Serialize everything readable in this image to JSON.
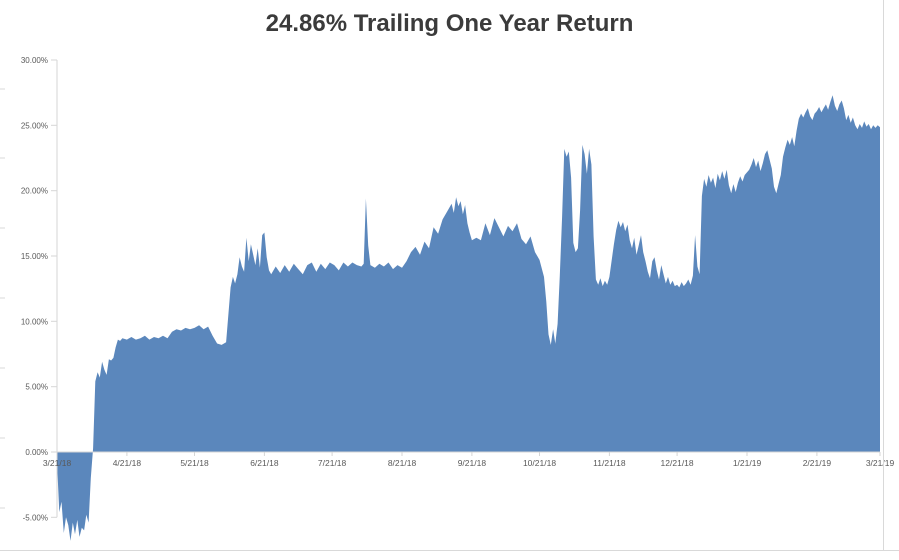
{
  "chart_data": {
    "type": "area",
    "title": "24.86% Trailing One Year Return",
    "final_value": "24.86%",
    "ylabel": "",
    "xlabel": "",
    "ylim": [
      -5,
      30
    ],
    "xlim_days": [
      0,
      365
    ],
    "grid": false,
    "legend": "none",
    "colors": {
      "area": "#5B87BC",
      "axis": "#D6D6D6",
      "border": "#D9D9D9",
      "label": "#595959",
      "title": "#3B3B3B"
    },
    "y_ticks": [
      {
        "value": 30,
        "label": "30.00%"
      },
      {
        "value": 25,
        "label": "25.00%"
      },
      {
        "value": 20,
        "label": "20.00%"
      },
      {
        "value": 15,
        "label": "15.00%"
      },
      {
        "value": 10,
        "label": "10.00%"
      },
      {
        "value": 5,
        "label": "5.00%"
      },
      {
        "value": 0,
        "label": "0.00%"
      },
      {
        "value": -5,
        "label": "-5.00%"
      }
    ],
    "x_ticks": [
      {
        "day": 0,
        "label": "3/21/18"
      },
      {
        "day": 31,
        "label": "4/21/18"
      },
      {
        "day": 61,
        "label": "5/21/18"
      },
      {
        "day": 92,
        "label": "6/21/18"
      },
      {
        "day": 122,
        "label": "7/21/18"
      },
      {
        "day": 153,
        "label": "8/21/18"
      },
      {
        "day": 184,
        "label": "9/21/18"
      },
      {
        "day": 214,
        "label": "10/21/18"
      },
      {
        "day": 245,
        "label": "11/21/18"
      },
      {
        "day": 275,
        "label": "12/21/18"
      },
      {
        "day": 306,
        "label": "1/21/19"
      },
      {
        "day": 337,
        "label": "2/21/19"
      },
      {
        "day": 365,
        "label": "3/21/19"
      }
    ],
    "series": [
      {
        "name": "Trailing One Year Return (%)",
        "points": [
          [
            0,
            -0.8
          ],
          [
            1,
            -4.6
          ],
          [
            2,
            -3.8
          ],
          [
            3,
            -6.2
          ],
          [
            4,
            -5.0
          ],
          [
            5,
            -5.6
          ],
          [
            6,
            -6.8
          ],
          [
            7,
            -5.4
          ],
          [
            8,
            -6.3
          ],
          [
            9,
            -5.2
          ],
          [
            10,
            -6.5
          ],
          [
            11,
            -5.8
          ],
          [
            12,
            -6.0
          ],
          [
            13,
            -4.8
          ],
          [
            14,
            -5.4
          ],
          [
            15,
            -2.0
          ],
          [
            16,
            0.3
          ],
          [
            17,
            5.4
          ],
          [
            18,
            6.1
          ],
          [
            19,
            5.7
          ],
          [
            20,
            6.9
          ],
          [
            21,
            6.3
          ],
          [
            22,
            5.9
          ],
          [
            23,
            7.1
          ],
          [
            24,
            7.0
          ],
          [
            25,
            7.2
          ],
          [
            26,
            8.0
          ],
          [
            27,
            8.6
          ],
          [
            28,
            8.5
          ],
          [
            29,
            8.7
          ],
          [
            31,
            8.6
          ],
          [
            33,
            8.8
          ],
          [
            35,
            8.6
          ],
          [
            37,
            8.7
          ],
          [
            39,
            8.9
          ],
          [
            41,
            8.6
          ],
          [
            43,
            8.8
          ],
          [
            45,
            8.7
          ],
          [
            47,
            8.9
          ],
          [
            49,
            8.7
          ],
          [
            51,
            9.2
          ],
          [
            53,
            9.4
          ],
          [
            55,
            9.3
          ],
          [
            57,
            9.5
          ],
          [
            59,
            9.4
          ],
          [
            61,
            9.5
          ],
          [
            63,
            9.7
          ],
          [
            65,
            9.4
          ],
          [
            67,
            9.6
          ],
          [
            69,
            8.9
          ],
          [
            71,
            8.3
          ],
          [
            73,
            8.2
          ],
          [
            75,
            8.4
          ],
          [
            77,
            12.6
          ],
          [
            78,
            13.4
          ],
          [
            79,
            12.9
          ],
          [
            80,
            13.6
          ],
          [
            81,
            14.9
          ],
          [
            82,
            14.2
          ],
          [
            83,
            13.8
          ],
          [
            84,
            16.4
          ],
          [
            85,
            14.6
          ],
          [
            86,
            15.9
          ],
          [
            87,
            15.1
          ],
          [
            88,
            14.3
          ],
          [
            89,
            15.6
          ],
          [
            90,
            14.1
          ],
          [
            91,
            16.6
          ],
          [
            92,
            16.8
          ],
          [
            93,
            14.9
          ],
          [
            94,
            13.9
          ],
          [
            95,
            13.6
          ],
          [
            97,
            14.2
          ],
          [
            99,
            13.7
          ],
          [
            101,
            14.3
          ],
          [
            103,
            13.8
          ],
          [
            105,
            14.4
          ],
          [
            107,
            14.0
          ],
          [
            109,
            13.6
          ],
          [
            111,
            14.3
          ],
          [
            113,
            14.5
          ],
          [
            115,
            13.8
          ],
          [
            117,
            14.4
          ],
          [
            119,
            14.0
          ],
          [
            121,
            14.5
          ],
          [
            123,
            14.3
          ],
          [
            125,
            13.9
          ],
          [
            127,
            14.5
          ],
          [
            129,
            14.2
          ],
          [
            131,
            14.5
          ],
          [
            133,
            14.3
          ],
          [
            135,
            14.2
          ],
          [
            136,
            14.4
          ],
          [
            137,
            19.4
          ],
          [
            138,
            15.8
          ],
          [
            139,
            14.3
          ],
          [
            141,
            14.1
          ],
          [
            143,
            14.4
          ],
          [
            145,
            14.2
          ],
          [
            147,
            14.5
          ],
          [
            149,
            14.0
          ],
          [
            151,
            14.3
          ],
          [
            153,
            14.1
          ],
          [
            155,
            14.6
          ],
          [
            157,
            15.3
          ],
          [
            159,
            15.7
          ],
          [
            161,
            15.1
          ],
          [
            163,
            16.1
          ],
          [
            165,
            15.6
          ],
          [
            167,
            17.2
          ],
          [
            169,
            16.7
          ],
          [
            171,
            17.8
          ],
          [
            173,
            18.4
          ],
          [
            175,
            19.0
          ],
          [
            176,
            18.3
          ],
          [
            177,
            19.5
          ],
          [
            178,
            18.8
          ],
          [
            179,
            19.2
          ],
          [
            180,
            18.2
          ],
          [
            181,
            18.9
          ],
          [
            182,
            17.5
          ],
          [
            183,
            16.8
          ],
          [
            184,
            16.2
          ],
          [
            186,
            16.4
          ],
          [
            188,
            16.2
          ],
          [
            190,
            17.5
          ],
          [
            192,
            16.6
          ],
          [
            194,
            17.9
          ],
          [
            196,
            17.2
          ],
          [
            198,
            16.5
          ],
          [
            200,
            17.3
          ],
          [
            202,
            16.9
          ],
          [
            204,
            17.5
          ],
          [
            206,
            16.3
          ],
          [
            208,
            15.9
          ],
          [
            210,
            16.5
          ],
          [
            212,
            15.3
          ],
          [
            214,
            14.7
          ],
          [
            216,
            13.4
          ],
          [
            217,
            11.5
          ],
          [
            218,
            9.0
          ],
          [
            219,
            8.2
          ],
          [
            220,
            9.4
          ],
          [
            221,
            8.3
          ],
          [
            222,
            9.8
          ],
          [
            223,
            13.5
          ],
          [
            224,
            18.0
          ],
          [
            225,
            23.2
          ],
          [
            226,
            22.6
          ],
          [
            227,
            23.0
          ],
          [
            228,
            21.0
          ],
          [
            229,
            16.0
          ],
          [
            230,
            15.3
          ],
          [
            231,
            15.6
          ],
          [
            232,
            18.5
          ],
          [
            233,
            23.5
          ],
          [
            234,
            22.8
          ],
          [
            235,
            21.3
          ],
          [
            236,
            23.2
          ],
          [
            237,
            22.0
          ],
          [
            238,
            16.5
          ],
          [
            239,
            13.2
          ],
          [
            240,
            12.8
          ],
          [
            241,
            13.3
          ],
          [
            242,
            12.7
          ],
          [
            243,
            13.1
          ],
          [
            244,
            12.8
          ],
          [
            245,
            13.4
          ],
          [
            247,
            15.9
          ],
          [
            248,
            17.0
          ],
          [
            249,
            17.7
          ],
          [
            250,
            17.2
          ],
          [
            251,
            17.6
          ],
          [
            252,
            16.9
          ],
          [
            253,
            17.4
          ],
          [
            254,
            16.2
          ],
          [
            255,
            15.6
          ],
          [
            256,
            16.4
          ],
          [
            257,
            15.1
          ],
          [
            258,
            15.8
          ],
          [
            259,
            16.6
          ],
          [
            260,
            15.3
          ],
          [
            261,
            14.6
          ],
          [
            262,
            13.8
          ],
          [
            263,
            13.3
          ],
          [
            264,
            14.6
          ],
          [
            265,
            14.9
          ],
          [
            266,
            13.9
          ],
          [
            267,
            13.2
          ],
          [
            268,
            14.3
          ],
          [
            269,
            13.6
          ],
          [
            270,
            12.9
          ],
          [
            271,
            13.4
          ],
          [
            272,
            12.8
          ],
          [
            273,
            13.1
          ],
          [
            274,
            12.7
          ],
          [
            275,
            12.8
          ],
          [
            276,
            12.6
          ],
          [
            277,
            13.0
          ],
          [
            278,
            12.7
          ],
          [
            279,
            12.9
          ],
          [
            280,
            13.2
          ],
          [
            281,
            12.8
          ],
          [
            282,
            13.5
          ],
          [
            283,
            16.6
          ],
          [
            284,
            14.2
          ],
          [
            285,
            13.6
          ],
          [
            286,
            19.6
          ],
          [
            287,
            20.9
          ],
          [
            288,
            20.3
          ],
          [
            289,
            21.2
          ],
          [
            290,
            20.6
          ],
          [
            291,
            21.0
          ],
          [
            292,
            20.2
          ],
          [
            293,
            21.3
          ],
          [
            294,
            20.8
          ],
          [
            295,
            21.5
          ],
          [
            296,
            20.9
          ],
          [
            297,
            21.6
          ],
          [
            298,
            20.4
          ],
          [
            299,
            19.8
          ],
          [
            300,
            20.5
          ],
          [
            301,
            19.9
          ],
          [
            302,
            20.6
          ],
          [
            303,
            21.1
          ],
          [
            304,
            20.7
          ],
          [
            305,
            21.2
          ],
          [
            307,
            21.6
          ],
          [
            308,
            22.0
          ],
          [
            309,
            22.5
          ],
          [
            310,
            21.8
          ],
          [
            311,
            22.3
          ],
          [
            312,
            21.5
          ],
          [
            313,
            22.1
          ],
          [
            314,
            22.8
          ],
          [
            315,
            23.1
          ],
          [
            316,
            22.4
          ],
          [
            317,
            21.7
          ],
          [
            318,
            20.3
          ],
          [
            319,
            19.8
          ],
          [
            320,
            20.5
          ],
          [
            321,
            21.2
          ],
          [
            322,
            22.6
          ],
          [
            323,
            23.3
          ],
          [
            324,
            23.9
          ],
          [
            325,
            23.5
          ],
          [
            326,
            24.1
          ],
          [
            327,
            23.4
          ],
          [
            328,
            24.6
          ],
          [
            329,
            25.5
          ],
          [
            330,
            25.9
          ],
          [
            331,
            25.6
          ],
          [
            332,
            26.0
          ],
          [
            333,
            26.3
          ],
          [
            334,
            25.7
          ],
          [
            335,
            25.4
          ],
          [
            336,
            25.9
          ],
          [
            337,
            26.1
          ],
          [
            338,
            26.4
          ],
          [
            339,
            26.0
          ],
          [
            340,
            26.3
          ],
          [
            341,
            26.6
          ],
          [
            342,
            26.2
          ],
          [
            343,
            26.8
          ],
          [
            344,
            27.3
          ],
          [
            345,
            26.5
          ],
          [
            346,
            26.1
          ],
          [
            347,
            26.6
          ],
          [
            348,
            26.9
          ],
          [
            349,
            26.3
          ],
          [
            350,
            25.4
          ],
          [
            351,
            25.8
          ],
          [
            352,
            25.2
          ],
          [
            353,
            25.6
          ],
          [
            354,
            25.0
          ],
          [
            355,
            24.7
          ],
          [
            356,
            25.1
          ],
          [
            357,
            24.8
          ],
          [
            358,
            25.3
          ],
          [
            359,
            24.9
          ],
          [
            360,
            25.1
          ],
          [
            361,
            24.7
          ],
          [
            362,
            25.0
          ],
          [
            363,
            24.8
          ],
          [
            364,
            25.0
          ],
          [
            365,
            24.86
          ]
        ]
      }
    ]
  }
}
